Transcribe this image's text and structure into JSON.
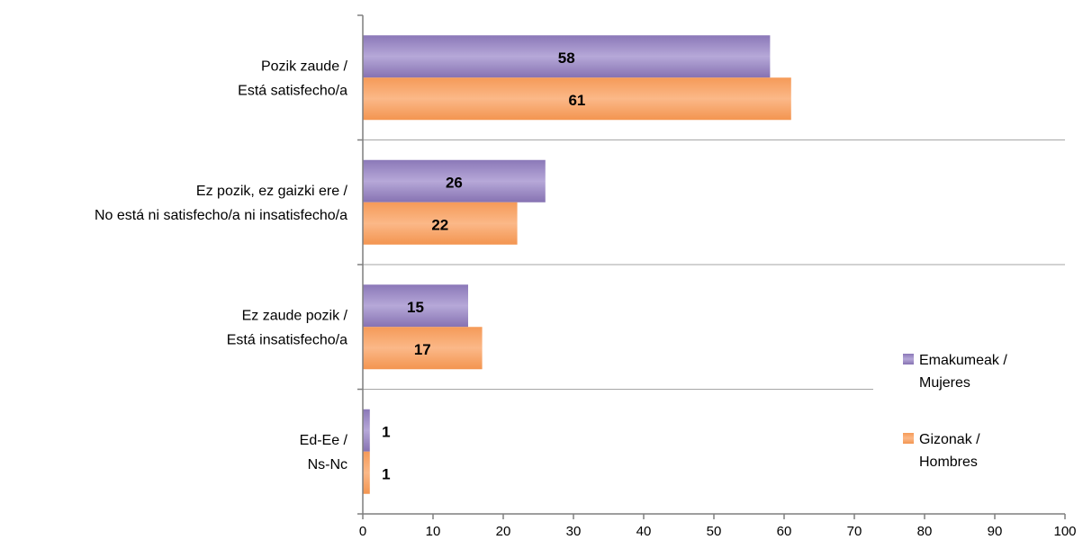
{
  "chart_data": {
    "type": "bar",
    "orientation": "horizontal",
    "categories": [
      [
        "Pozik zaude /",
        "Está satisfecho/a"
      ],
      [
        "Ez pozik, ez gaizki ere /",
        "No está ni satisfecho/a ni insatisfecho/a"
      ],
      [
        "Ez zaude pozik /",
        "Está insatisfecho/a"
      ],
      [
        "Ed-Ee /",
        "Ns-Nc"
      ]
    ],
    "series": [
      {
        "name": [
          "Emakumeak /",
          "Mujeres"
        ],
        "values": [
          58,
          26,
          15,
          1
        ],
        "color": "#9f8fc4"
      },
      {
        "name": [
          "Gizonak /",
          "Hombres"
        ],
        "values": [
          61,
          22,
          17,
          1
        ],
        "color": "#f6a267"
      }
    ],
    "xlim": [
      0,
      100
    ],
    "xticks": [
      "0",
      "10",
      "20",
      "30",
      "40",
      "50",
      "60",
      "70",
      "80",
      "90",
      "100"
    ],
    "grid": "horizontal separators between categories",
    "legend": "right"
  }
}
